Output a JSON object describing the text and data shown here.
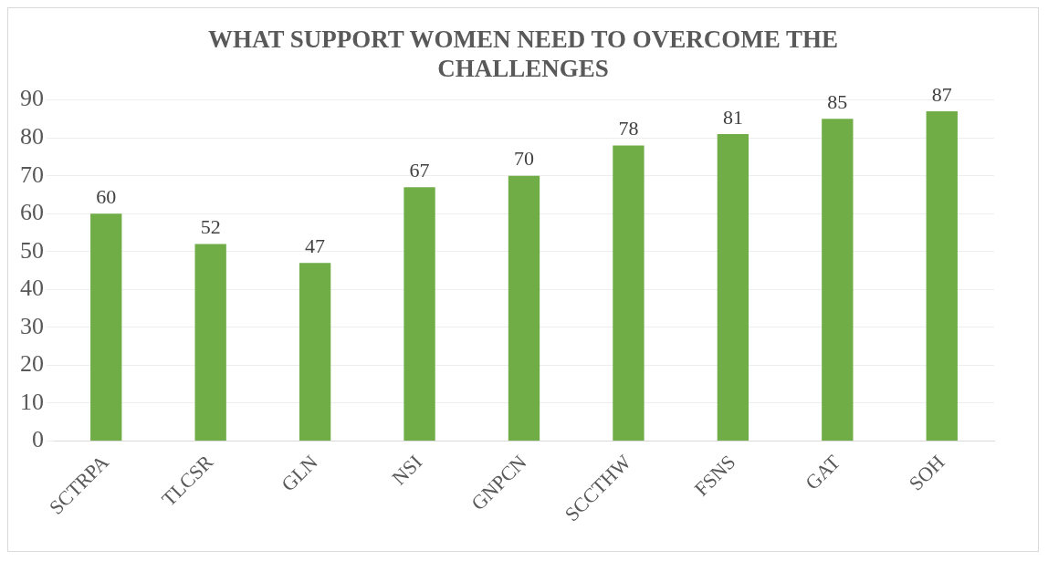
{
  "chart_data": {
    "type": "bar",
    "title": "WHAT SUPPORT WOMEN NEED TO OVERCOME THE CHALLENGES",
    "categories": [
      "SCTRPA",
      "TLCSR",
      "GLN",
      "NSI",
      "GNPCN",
      "SCCTHW",
      "FSNS",
      "GAT",
      "SOH"
    ],
    "values": [
      60,
      52,
      47,
      67,
      70,
      78,
      81,
      85,
      87
    ],
    "color": "#70ad47",
    "ylim": [
      0,
      90
    ],
    "yticks": [
      0,
      10,
      20,
      30,
      40,
      50,
      60,
      70,
      80,
      90
    ],
    "grid": "y",
    "data_labels": true,
    "legend": false
  }
}
